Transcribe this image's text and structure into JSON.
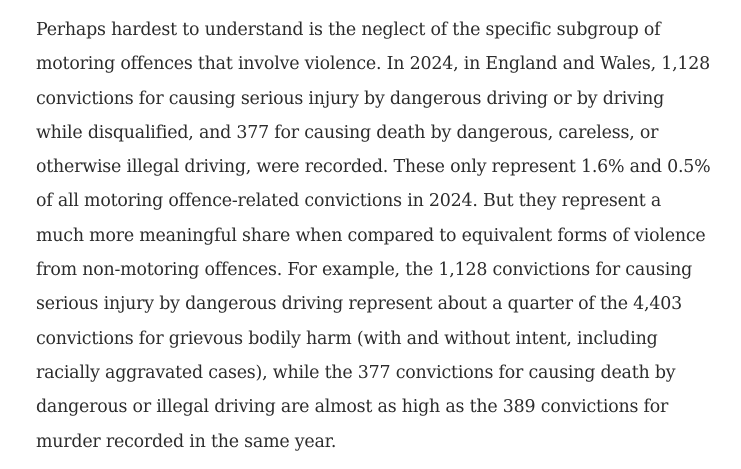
{
  "article": {
    "paragraph_lines": [
      "Perhaps hardest to understand is the neglect of the specific subgroup of",
      "motoring offences that involve violence. In 2024, in England and Wales, 1,128",
      "convictions for causing serious injury by dangerous driving or by driving",
      "while disqualified, and 377 for causing death by dangerous, careless, or",
      "otherwise illegal driving, were recorded. These only represent 1.6% and 0.5%",
      "of all motoring offence-related convictions in 2024. But they represent a",
      "much more meaningful share when compared to equivalent forms of violence",
      "from non-motoring offences. For example, the 1,128 convictions for causing",
      "serious injury by dangerous driving represent about a quarter of the 4,403",
      "convictions for grievous bodily harm (with and without intent, including",
      "racially aggravated cases), while the 377 convictions for causing death by",
      "dangerous or illegal driving are almost as high as the 389 convictions for",
      "murder recorded in the same year."
    ]
  }
}
